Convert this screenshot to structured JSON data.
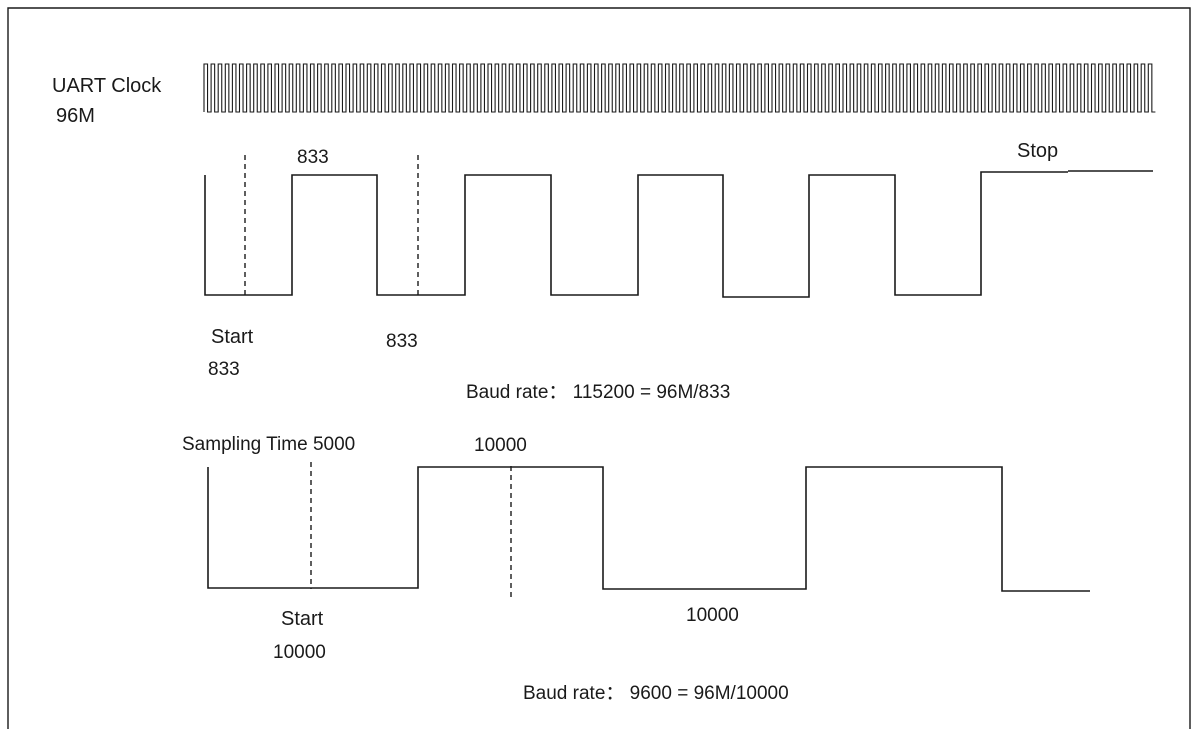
{
  "clock": {
    "label": "UART Clock",
    "frequency": "96M"
  },
  "waveform_115200": {
    "bit_width_label": "833",
    "sample_label": "833",
    "start_label": "Start",
    "start_value": "833",
    "stop_label": "Stop",
    "caption": "Baud rate： 115200 = 96M/833"
  },
  "waveform_9600": {
    "sampling_label": "Sampling Time 5000",
    "bit_width_label": "10000",
    "low_period_label": "10000",
    "start_label": "Start",
    "start_value": "10000",
    "caption": "Baud rate： 9600 = 96M/10000"
  }
}
